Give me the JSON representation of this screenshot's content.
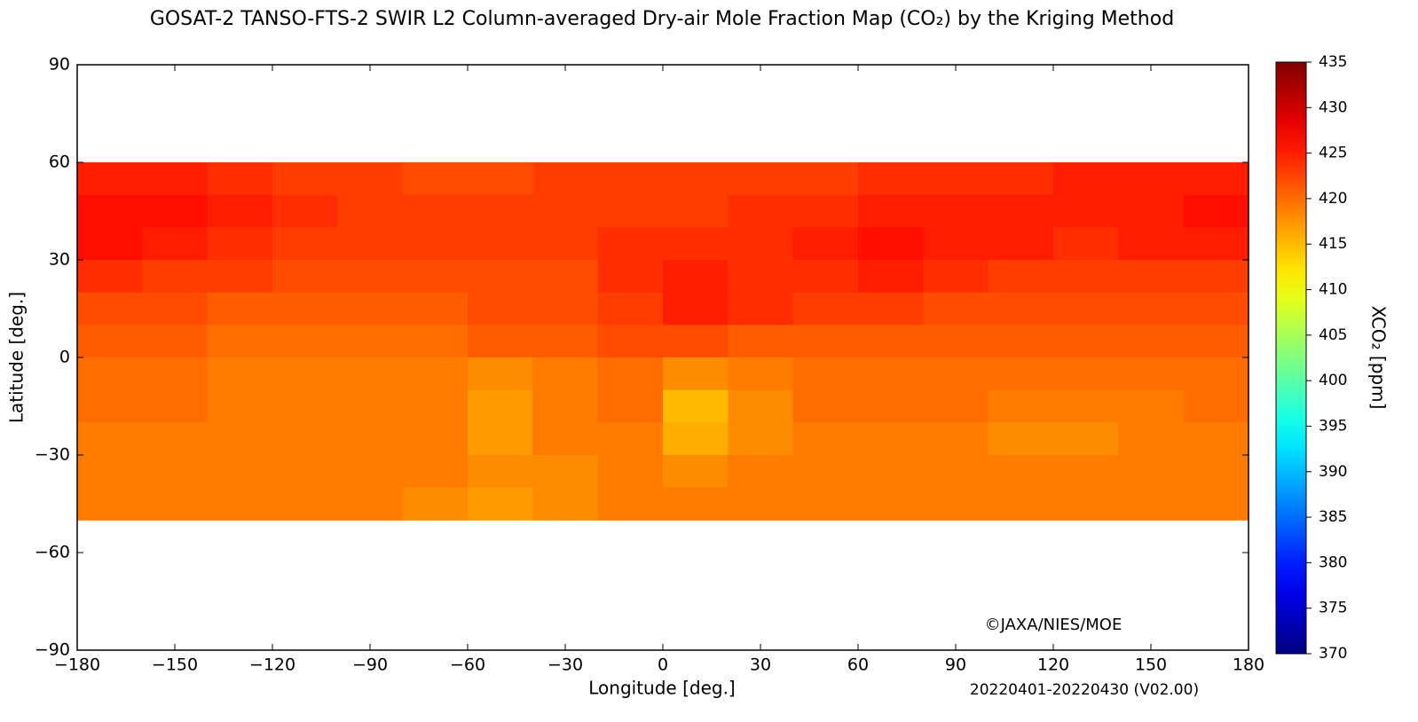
{
  "chart_data": {
    "type": "heatmap",
    "title": "GOSAT-2 TANSO-FTS-2 SWIR L2 Column-averaged Dry-air Mole Fraction Map (CO₂) by the Kriging Method",
    "x_label": "Longitude [deg.]",
    "y_label": "Latitude [deg.]",
    "annotation": "©JAXA/NIES/MOE",
    "period": "20220401-20220430 (V02.00)",
    "xlim": [
      -180,
      180
    ],
    "ylim": [
      -90,
      90
    ],
    "xticks": [
      {
        "value": -180,
        "label": "−180"
      },
      {
        "value": -150,
        "label": "−150"
      },
      {
        "value": -120,
        "label": "−120"
      },
      {
        "value": -90,
        "label": "−90"
      },
      {
        "value": -60,
        "label": "−60"
      },
      {
        "value": -30,
        "label": "−30"
      },
      0,
      30,
      60,
      90,
      120,
      150,
      180
    ],
    "yticks": [
      90,
      60,
      30,
      0,
      {
        "value": -30,
        "label": "−30"
      },
      {
        "value": -60,
        "label": "−60"
      },
      {
        "value": -90,
        "label": "−90"
      }
    ],
    "x": [
      -180,
      -160,
      -140,
      -120,
      -100,
      -80,
      -60,
      -40,
      -20,
      0,
      20,
      40,
      60,
      80,
      100,
      120,
      140,
      160
    ],
    "y": [
      60,
      50,
      40,
      30,
      20,
      10,
      0,
      -10,
      -20,
      -30,
      -40
    ],
    "values": [
      [
        425,
        425,
        424,
        423,
        423,
        422,
        422,
        423,
        423,
        423,
        423,
        423,
        424,
        424,
        424,
        425,
        425,
        425
      ],
      [
        426,
        426,
        425,
        424,
        423,
        423,
        423,
        423,
        423,
        423,
        424,
        424,
        425,
        425,
        425,
        425,
        425,
        426
      ],
      [
        426,
        425,
        424,
        423,
        423,
        423,
        423,
        423,
        424,
        424,
        424,
        425,
        426,
        425,
        425,
        424,
        425,
        425
      ],
      [
        424,
        423,
        423,
        422,
        422,
        422,
        422,
        422,
        424,
        425,
        424,
        424,
        425,
        424,
        423,
        423,
        423,
        423
      ],
      [
        422,
        422,
        421,
        421,
        421,
        421,
        422,
        422,
        423,
        425,
        424,
        423,
        423,
        422,
        422,
        422,
        422,
        422
      ],
      [
        421,
        421,
        420,
        420,
        420,
        420,
        421,
        421,
        422,
        422,
        421,
        421,
        421,
        421,
        421,
        421,
        421,
        421
      ],
      [
        420,
        420,
        419,
        419,
        419,
        419,
        418,
        419,
        420,
        418,
        419,
        420,
        420,
        420,
        420,
        420,
        420,
        420
      ],
      [
        420,
        420,
        419,
        419,
        419,
        419,
        417,
        419,
        420,
        415,
        418,
        420,
        420,
        420,
        419,
        419,
        419,
        420
      ],
      [
        419,
        419,
        419,
        419,
        419,
        419,
        417,
        419,
        419,
        416,
        418,
        419,
        419,
        419,
        418,
        418,
        419,
        419
      ],
      [
        419,
        419,
        419,
        419,
        419,
        419,
        418,
        418,
        419,
        418,
        419,
        419,
        419,
        419,
        419,
        419,
        419,
        419
      ],
      [
        419,
        419,
        419,
        419,
        419,
        418,
        417,
        418,
        419,
        419,
        419,
        419,
        419,
        419,
        419,
        419,
        419,
        419
      ]
    ],
    "colormap": "jet",
    "colorbar": {
      "label": "XCO₂ [ppm]",
      "lim": [
        370,
        435
      ],
      "ticks": [
        370,
        375,
        380,
        385,
        390,
        395,
        400,
        405,
        410,
        415,
        420,
        425,
        430,
        435
      ]
    }
  }
}
